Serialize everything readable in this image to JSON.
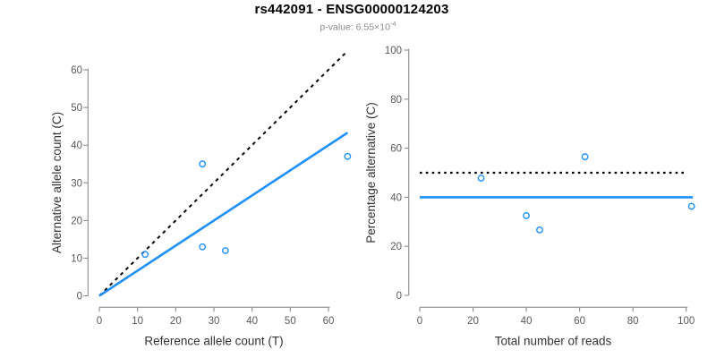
{
  "header": {
    "title": "rs442091 - ENSG00000124203",
    "pvalue_label": "p-value: 6.55×10",
    "pvalue_exponent": "-4"
  },
  "colors": {
    "accent_blue": "#1E90FF",
    "line_black": "#000000",
    "axis_gray": "#8c8c8c",
    "tick_text": "#595959",
    "axis_title_text": "#333333",
    "subtitle_gray": "#8c8c8c"
  },
  "chart_data": [
    {
      "type": "scatter",
      "name": "allele-counts",
      "xlabel": "Reference allele count (T)",
      "ylabel": "Alternative allele count (C)",
      "xticks": [
        0,
        10,
        20,
        30,
        40,
        50,
        60
      ],
      "yticks": [
        0,
        10,
        20,
        30,
        40,
        50,
        60
      ],
      "xlim": [
        0,
        65
      ],
      "ylim": [
        0,
        65
      ],
      "grid": false,
      "points": [
        {
          "x": 12,
          "y": 11
        },
        {
          "x": 27,
          "y": 35
        },
        {
          "x": 27,
          "y": 13
        },
        {
          "x": 33,
          "y": 12
        },
        {
          "x": 65,
          "y": 37
        }
      ],
      "lines": [
        {
          "name": "identity-line",
          "style": "dashed",
          "color": "#000000",
          "x1": 0,
          "y1": 0,
          "x2": 65,
          "y2": 65
        },
        {
          "name": "fit-line",
          "style": "solid",
          "color": "#1E90FF",
          "x1": 0,
          "y1": 0,
          "x2": 65,
          "y2": 43.3
        }
      ]
    },
    {
      "type": "scatter",
      "name": "percentage-vs-reads",
      "xlabel": "Total number of reads",
      "ylabel": "Percentage alternative (C)",
      "xticks": [
        0,
        20,
        40,
        60,
        80,
        100
      ],
      "yticks": [
        0,
        20,
        40,
        60,
        80,
        100
      ],
      "xlim": [
        0,
        102.5
      ],
      "ylim": [
        0,
        100
      ],
      "grid": false,
      "points": [
        {
          "x": 23,
          "y": 47.8
        },
        {
          "x": 62,
          "y": 56.5
        },
        {
          "x": 40,
          "y": 32.5
        },
        {
          "x": 45,
          "y": 26.7
        },
        {
          "x": 102,
          "y": 36.3
        }
      ],
      "lines": [
        {
          "name": "null-50pct-line",
          "style": "dotted",
          "color": "#000000",
          "x1": 0,
          "y1": 50,
          "x2": 100.5,
          "y2": 50
        },
        {
          "name": "fit-40pct-line",
          "style": "solid",
          "color": "#1E90FF",
          "x1": 0,
          "y1": 40,
          "x2": 102.5,
          "y2": 40
        }
      ]
    }
  ]
}
